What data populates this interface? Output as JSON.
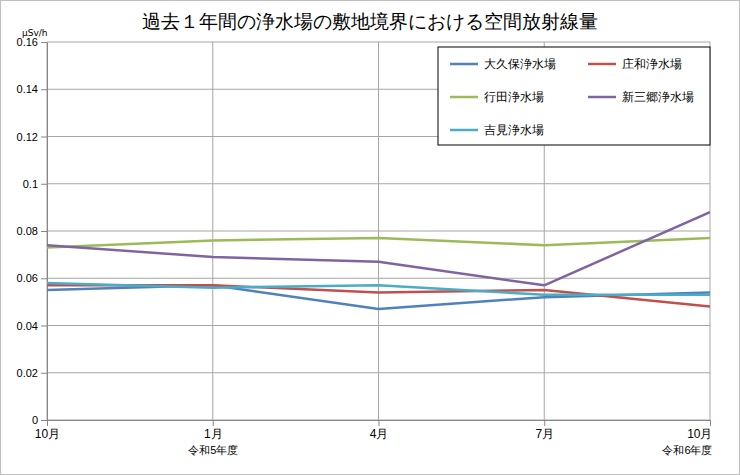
{
  "chart_data": {
    "type": "line",
    "title": "過去１年間の浄水場の敷地境界における空間放射線量",
    "y_label": "μSv/h",
    "categories": [
      "10月",
      "1月",
      "4月",
      "7月",
      "10月"
    ],
    "x_sublabels": [
      null,
      "令和5年度",
      null,
      null,
      "令和6年度"
    ],
    "series": [
      {
        "name": "大久保浄水場",
        "color": "#4f81bd",
        "values": [
          0.055,
          0.057,
          0.047,
          0.052,
          0.054
        ]
      },
      {
        "name": "庄和浄水場",
        "color": "#c0504d",
        "values": [
          0.057,
          0.057,
          0.054,
          0.055,
          0.048
        ]
      },
      {
        "name": "行田浄水場",
        "color": "#9bbb59",
        "values": [
          0.073,
          0.076,
          0.077,
          0.074,
          0.077
        ]
      },
      {
        "name": "新三郷浄水場",
        "color": "#8064a2",
        "values": [
          0.074,
          0.069,
          0.067,
          0.057,
          0.088
        ]
      },
      {
        "name": "吉見浄水場",
        "color": "#4bacc6",
        "values": [
          0.058,
          0.056,
          0.057,
          0.053,
          0.053
        ]
      }
    ],
    "ylim": [
      0,
      0.16
    ],
    "yticks": [
      0,
      0.02,
      0.04,
      0.06,
      0.08,
      0.1,
      0.12,
      0.14,
      0.16
    ],
    "grid": true,
    "legend": "top-right"
  }
}
